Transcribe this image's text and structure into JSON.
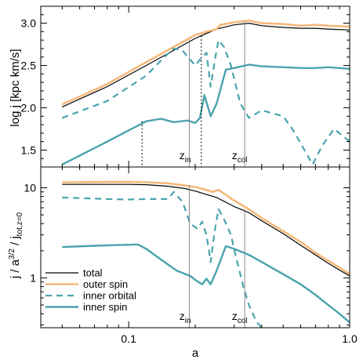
{
  "colors": {
    "total": "#000000",
    "outer_spin": "#f5b87a",
    "inner": "#4aa3ad",
    "marker": "#888888"
  },
  "chart_data": [
    {
      "type": "line",
      "panel": "top",
      "ylabel": "log j [kpc km/s]",
      "xlabel": "",
      "xscale": "log",
      "xlim": [
        0.04,
        1.0
      ],
      "ylim": [
        1.3,
        3.2
      ],
      "yticks": [
        {
          "v": 1.5,
          "label": "1.5"
        },
        {
          "v": 2.0,
          "label": "2.0"
        },
        {
          "v": 2.5,
          "label": "2.5"
        },
        {
          "v": 3.0,
          "label": "3.0"
        }
      ],
      "xticks": [],
      "series": [
        {
          "key": "total",
          "style": "thin",
          "x": [
            0.05,
            0.08,
            0.12,
            0.16,
            0.2,
            0.25,
            0.3,
            0.35,
            0.4,
            0.5,
            0.6,
            0.7,
            0.8,
            1.0
          ],
          "y": [
            2.01,
            2.25,
            2.5,
            2.68,
            2.82,
            2.93,
            2.98,
            3.0,
            2.97,
            2.95,
            2.94,
            2.94,
            2.93,
            2.92
          ]
        },
        {
          "key": "outer_spin",
          "style": "thick",
          "x": [
            0.05,
            0.08,
            0.12,
            0.16,
            0.2,
            0.225,
            0.25,
            0.26,
            0.3,
            0.35,
            0.4,
            0.5,
            0.6,
            0.7,
            0.8,
            1.0
          ],
          "y": [
            2.04,
            2.28,
            2.54,
            2.72,
            2.86,
            2.9,
            2.93,
            2.98,
            3.01,
            3.03,
            3.0,
            2.99,
            2.97,
            2.98,
            2.97,
            2.96
          ]
        },
        {
          "key": "inner_orbital",
          "style": "dashed",
          "x": [
            0.05,
            0.08,
            0.12,
            0.145,
            0.16,
            0.175,
            0.185,
            0.2,
            0.215,
            0.225,
            0.235,
            0.245,
            0.255,
            0.27,
            0.29,
            0.32,
            0.35,
            0.4,
            0.5,
            0.55,
            0.6,
            0.68,
            0.75,
            0.85,
            1.0
          ],
          "y": [
            1.88,
            2.08,
            2.38,
            2.6,
            2.7,
            2.68,
            2.6,
            2.5,
            2.6,
            2.65,
            2.25,
            2.55,
            2.8,
            2.72,
            2.5,
            2.05,
            1.88,
            1.97,
            1.9,
            1.75,
            1.58,
            1.33,
            1.55,
            1.75,
            1.6
          ]
        },
        {
          "key": "inner_spin",
          "style": "medium",
          "x": [
            0.05,
            0.08,
            0.12,
            0.14,
            0.16,
            0.185,
            0.2,
            0.21,
            0.22,
            0.235,
            0.25,
            0.275,
            0.3,
            0.35,
            0.4,
            0.5,
            0.6,
            0.7,
            0.8,
            1.0
          ],
          "y": [
            1.33,
            1.6,
            1.84,
            1.87,
            1.83,
            1.85,
            1.82,
            1.88,
            2.15,
            1.9,
            2.05,
            2.45,
            2.47,
            2.51,
            2.49,
            2.48,
            2.47,
            2.47,
            2.48,
            2.46
          ]
        }
      ],
      "markers": [
        {
          "a": 0.115,
          "style": "dotted",
          "ymax": 1.84
        },
        {
          "a": 0.213,
          "style": "dotted",
          "ymax": 2.85
        },
        {
          "a": 0.188,
          "style": "solid",
          "ymax": 2.8
        },
        {
          "a": 0.335,
          "style": "solid",
          "ymax": 3.02
        }
      ],
      "annotations": [
        {
          "text": "z",
          "sub": "in",
          "a": 0.184
        },
        {
          "text": "z",
          "sub": "col",
          "a": 0.318
        }
      ]
    },
    {
      "type": "line",
      "panel": "bottom",
      "ylabel": "j / a^3/2 / jtot,z=0",
      "ylabel_parts": {
        "a": "j / a",
        "b": "3/2",
        "c": " / j",
        "d": "tot,z=0"
      },
      "xlabel": "a",
      "xscale": "log",
      "yscale": "log",
      "xlim": [
        0.04,
        1.0
      ],
      "ylim": [
        0.28,
        17
      ],
      "yticks": [
        {
          "v": 1,
          "label": "1"
        },
        {
          "v": 10,
          "label": "10"
        }
      ],
      "xticks": [
        {
          "v": 0.1,
          "label": "0.1"
        },
        {
          "v": 1.0,
          "label": "1.0"
        }
      ],
      "series": [
        {
          "key": "total",
          "style": "thin",
          "x": [
            0.05,
            0.08,
            0.1,
            0.12,
            0.15,
            0.18,
            0.2,
            0.25,
            0.3,
            0.35,
            0.4,
            0.5,
            0.6,
            0.7,
            0.8,
            0.9,
            1.0
          ],
          "y": [
            10.9,
            10.9,
            10.9,
            10.8,
            10.4,
            9.8,
            9.2,
            7.8,
            6.2,
            5.3,
            4.3,
            3.1,
            2.3,
            1.8,
            1.45,
            1.22,
            1.05
          ]
        },
        {
          "key": "outer_spin",
          "style": "thick",
          "x": [
            0.05,
            0.08,
            0.1,
            0.12,
            0.15,
            0.18,
            0.2,
            0.22,
            0.24,
            0.255,
            0.3,
            0.35,
            0.4,
            0.5,
            0.6,
            0.7,
            0.8,
            0.9,
            1.0
          ],
          "y": [
            11.5,
            11.6,
            11.6,
            11.5,
            11.2,
            10.6,
            10.2,
            9.6,
            9.0,
            9.5,
            7.2,
            5.8,
            4.6,
            3.3,
            2.5,
            1.9,
            1.55,
            1.3,
            1.1
          ]
        },
        {
          "key": "inner_orbital",
          "style": "dashed",
          "x": [
            0.05,
            0.08,
            0.1,
            0.12,
            0.15,
            0.16,
            0.175,
            0.19,
            0.205,
            0.215,
            0.225,
            0.235,
            0.245,
            0.255,
            0.27,
            0.29,
            0.31,
            0.33,
            0.35,
            0.38,
            0.4
          ],
          "y": [
            7.8,
            7.5,
            7.4,
            7.5,
            7.5,
            9.0,
            7.0,
            4.0,
            3.5,
            4.2,
            3.0,
            1.5,
            3.3,
            5.8,
            4.5,
            3.0,
            1.5,
            0.8,
            0.5,
            0.32,
            0.28
          ]
        },
        {
          "key": "inner_spin",
          "style": "medium",
          "x": [
            0.05,
            0.08,
            0.11,
            0.12,
            0.14,
            0.165,
            0.19,
            0.2,
            0.215,
            0.225,
            0.235,
            0.25,
            0.275,
            0.3,
            0.35,
            0.4,
            0.5,
            0.6,
            0.7,
            0.8,
            0.9,
            1.0
          ],
          "y": [
            2.2,
            2.3,
            2.35,
            2.1,
            1.6,
            1.2,
            1.05,
            0.95,
            0.85,
            0.98,
            0.85,
            1.2,
            2.25,
            2.1,
            1.8,
            1.5,
            1.1,
            0.85,
            0.65,
            0.5,
            0.4,
            0.32
          ]
        }
      ],
      "markers": [
        {
          "a": 0.188,
          "style": "solid",
          "ymax": 10.6
        },
        {
          "a": 0.335,
          "style": "solid",
          "ymax": 5.8
        }
      ],
      "annotations": [
        {
          "text": "z",
          "sub": "in",
          "a": 0.184
        },
        {
          "text": "z",
          "sub": "col",
          "a": 0.318
        }
      ],
      "legend": {
        "placement": "lower-left",
        "entries": [
          {
            "key": "total",
            "style": "thin",
            "label": "total"
          },
          {
            "key": "outer_spin",
            "style": "thick",
            "label": "outer spin"
          },
          {
            "key": "inner_orbital",
            "style": "dashed",
            "label": "inner orbital"
          },
          {
            "key": "inner_spin",
            "style": "medium",
            "label": "inner spin"
          }
        ]
      }
    }
  ]
}
